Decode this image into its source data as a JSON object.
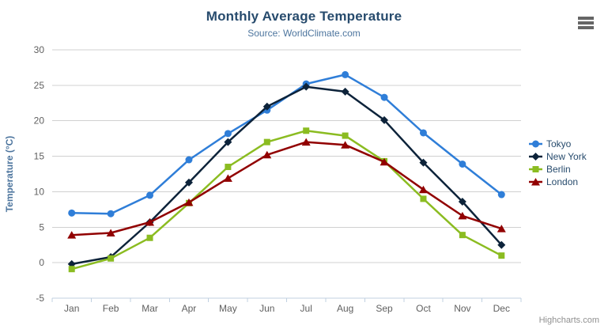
{
  "chart_data": {
    "type": "line",
    "title": "Monthly Average Temperature",
    "subtitle": "Source: WorldClimate.com",
    "xlabel": "",
    "ylabel": "Temperature (°C)",
    "ylim": [
      -5,
      30
    ],
    "ytick_interval": 5,
    "grid": true,
    "legend_position": "right",
    "categories": [
      "Jan",
      "Feb",
      "Mar",
      "Apr",
      "May",
      "Jun",
      "Jul",
      "Aug",
      "Sep",
      "Oct",
      "Nov",
      "Dec"
    ],
    "series": [
      {
        "name": "Tokyo",
        "marker": "circle",
        "color": "#2f7ed8",
        "values": [
          7.0,
          6.9,
          9.5,
          14.5,
          18.2,
          21.5,
          25.2,
          26.5,
          23.3,
          18.3,
          13.9,
          9.6
        ]
      },
      {
        "name": "New York",
        "marker": "diamond",
        "color": "#0d233a",
        "values": [
          -0.2,
          0.8,
          5.7,
          11.3,
          17.0,
          22.0,
          24.8,
          24.1,
          20.1,
          14.1,
          8.6,
          2.5
        ]
      },
      {
        "name": "Berlin",
        "marker": "square",
        "color": "#8bbc21",
        "values": [
          -0.9,
          0.6,
          3.5,
          8.4,
          13.5,
          17.0,
          18.6,
          17.9,
          14.3,
          9.0,
          3.9,
          1.0
        ]
      },
      {
        "name": "London",
        "marker": "triangle",
        "color": "#910000",
        "values": [
          3.9,
          4.2,
          5.7,
          8.5,
          11.9,
          15.2,
          17.0,
          16.6,
          14.2,
          10.3,
          6.6,
          4.8
        ]
      }
    ],
    "colors": {
      "title": "#274b6d",
      "subtitle": "#4d759e",
      "axis_title": "#4d759e",
      "axis_labels": "#606060",
      "grid_line": "#d0d0d0",
      "axis_line": "#c0d0e0",
      "legend_text": "#274b6d",
      "credits": "#909090",
      "export_icon": "#666666"
    }
  },
  "credits": {
    "label": "Highcharts.com"
  }
}
